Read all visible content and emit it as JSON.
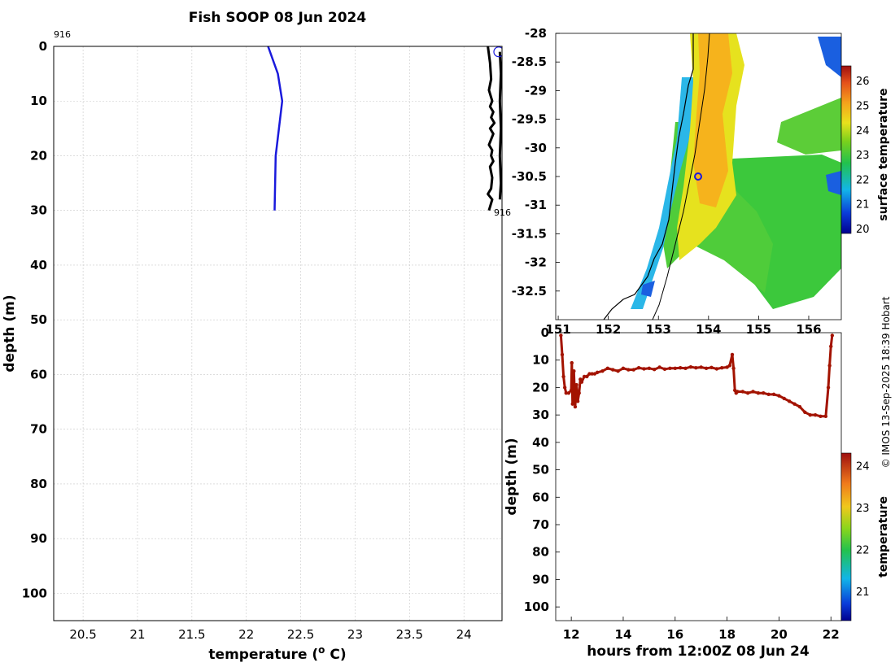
{
  "title": "Fish SOOP 08 Jun 2024",
  "credit": "© IMOS 13-Sep-2025 18:39 Hobart",
  "colors": {
    "profile": "#1a1adc",
    "track": "#000000",
    "depth_series": "#a31300",
    "grid": "#c8c8c8"
  },
  "chart_data": [
    {
      "type": "line",
      "name": "temperature-profile",
      "xlabel": "temperature (° C)",
      "ylabel": "depth (m)",
      "xlim": [
        20.23,
        24.35
      ],
      "ylim": [
        105,
        0
      ],
      "xticks": [
        "20.5",
        "21",
        "21.5",
        "22",
        "22.5",
        "23",
        "23.5",
        "24"
      ],
      "yticks": [
        "0",
        "10",
        "20",
        "30",
        "40",
        "50",
        "60",
        "70",
        "80",
        "90",
        "100"
      ],
      "profile_id_top": "916",
      "profile_id_bottom": "916",
      "series": [
        {
          "name": "mean profile",
          "temperature": [
            22.2,
            22.29,
            22.33,
            22.27,
            22.26
          ],
          "depth": [
            0,
            5,
            10,
            20,
            30
          ]
        },
        {
          "name": "individual profiles",
          "temperature": [
            24.22,
            24.24,
            24.25,
            24.23,
            24.26,
            24.24,
            24.27,
            24.25,
            24.28,
            24.24,
            24.27,
            24.25,
            24.23,
            24.26,
            24.25,
            24.27,
            24.24,
            24.26,
            24.25,
            24.22,
            24.26,
            24.23
          ],
          "depth": [
            0,
            3,
            6,
            8,
            10,
            11,
            12,
            13,
            14,
            15,
            16,
            17,
            18,
            19,
            20,
            21,
            22,
            24,
            26,
            27,
            28,
            30
          ]
        },
        {
          "name": "individual profiles 2",
          "temperature": [
            24.33,
            24.34,
            24.33,
            24.34,
            24.33,
            24.34,
            24.33
          ],
          "depth": [
            1,
            5,
            10,
            15,
            20,
            25,
            28
          ]
        }
      ],
      "surface_marker": {
        "temperature": 24.32,
        "depth": 1
      }
    },
    {
      "type": "heatmap",
      "name": "surface-temperature-map",
      "colorbar_label": "surface temperature",
      "colorbar_range": [
        19.8,
        26.6
      ],
      "colorbar_ticks": [
        "20",
        "21",
        "22",
        "23",
        "24",
        "25",
        "26"
      ],
      "xlim": [
        150.95,
        156.65
      ],
      "ylim": [
        -33,
        -28
      ],
      "xticks": [
        "151",
        "152",
        "153",
        "154",
        "155",
        "156"
      ],
      "yticks": [
        "-28",
        "-28.5",
        "-29",
        "-29.5",
        "-30",
        "-30.5",
        "-31",
        "-31.5",
        "-32",
        "-32.5"
      ],
      "vessel_position": {
        "lon": 153.6,
        "lat": -30.5
      }
    },
    {
      "type": "scatter",
      "name": "depth-time-series",
      "xlabel": "hours from 12:00Z 08 Jun 24",
      "ylabel": "depth (m)",
      "xlim": [
        11.4,
        22.4
      ],
      "ylim": [
        105,
        0
      ],
      "xticks": [
        "12",
        "14",
        "16",
        "18",
        "20",
        "22"
      ],
      "yticks": [
        "0",
        "10",
        "20",
        "30",
        "40",
        "50",
        "60",
        "70",
        "80",
        "90",
        "100"
      ],
      "colorbar_label": "temperature",
      "colorbar_range": [
        20.3,
        24.3
      ],
      "colorbar_ticks": [
        "21",
        "22",
        "23",
        "24"
      ],
      "hours": [
        11.6,
        11.65,
        11.7,
        11.75,
        11.8,
        11.9,
        12.0,
        12.02,
        12.05,
        12.1,
        12.15,
        12.2,
        12.25,
        12.3,
        12.35,
        12.4,
        12.5,
        12.6,
        12.7,
        12.8,
        12.9,
        13.0,
        13.2,
        13.4,
        13.6,
        13.8,
        14.0,
        14.2,
        14.4,
        14.6,
        14.8,
        15.0,
        15.2,
        15.4,
        15.6,
        15.8,
        16.0,
        16.2,
        16.4,
        16.6,
        16.8,
        17.0,
        17.2,
        17.4,
        17.6,
        17.8,
        18.0,
        18.1,
        18.2,
        18.25,
        18.3,
        18.35,
        18.4,
        18.6,
        18.8,
        19.0,
        19.2,
        19.4,
        19.6,
        19.8,
        20.0,
        20.2,
        20.4,
        20.6,
        20.8,
        21.0,
        21.2,
        21.4,
        21.6,
        21.8,
        21.9,
        21.95,
        22.0,
        22.05
      ],
      "depths": [
        1,
        8,
        16,
        20,
        22,
        22,
        21,
        11,
        26,
        14,
        27,
        19,
        25,
        22,
        17,
        18,
        16,
        16,
        15,
        15,
        15,
        14.5,
        14,
        13,
        13.5,
        14,
        13,
        13.5,
        13.5,
        12.8,
        13.2,
        13,
        13.4,
        12.6,
        13.3,
        13,
        13,
        12.8,
        13,
        12.5,
        12.8,
        12.6,
        13,
        12.7,
        13.2,
        12.8,
        12.6,
        12,
        8,
        13,
        21,
        22,
        21.5,
        21.5,
        22,
        21.5,
        22,
        22,
        22.5,
        22.5,
        23,
        24,
        25,
        26,
        27,
        29,
        30,
        30,
        30.5,
        30.5,
        20,
        12,
        5,
        1
      ],
      "temperatures": [
        24.3,
        24.3,
        24.3,
        24.2,
        24.2,
        24.3,
        24.3,
        24.3,
        24.2,
        24.3,
        24.2,
        24.3,
        24.2,
        24.2,
        24.2,
        24.2,
        24.3,
        24.3,
        24.3,
        24.3,
        24.3,
        24.3,
        24.3,
        24.3,
        24.3,
        24.3,
        24.3,
        24.3,
        24.3,
        24.3,
        24.3,
        24.3,
        24.3,
        24.3,
        24.3,
        24.3,
        24.3,
        24.3,
        24.3,
        24.3,
        24.3,
        24.3,
        24.3,
        24.3,
        24.3,
        24.3,
        24.3,
        24.3,
        24.3,
        24.3,
        24.2,
        24.2,
        24.2,
        24.2,
        24.2,
        24.2,
        24.2,
        24.2,
        24.2,
        24.2,
        24.2,
        24.2,
        24.2,
        24.2,
        24.2,
        24.2,
        24.2,
        24.2,
        24.2,
        24.2,
        24.2,
        24.3,
        24.3,
        24.3
      ]
    }
  ]
}
